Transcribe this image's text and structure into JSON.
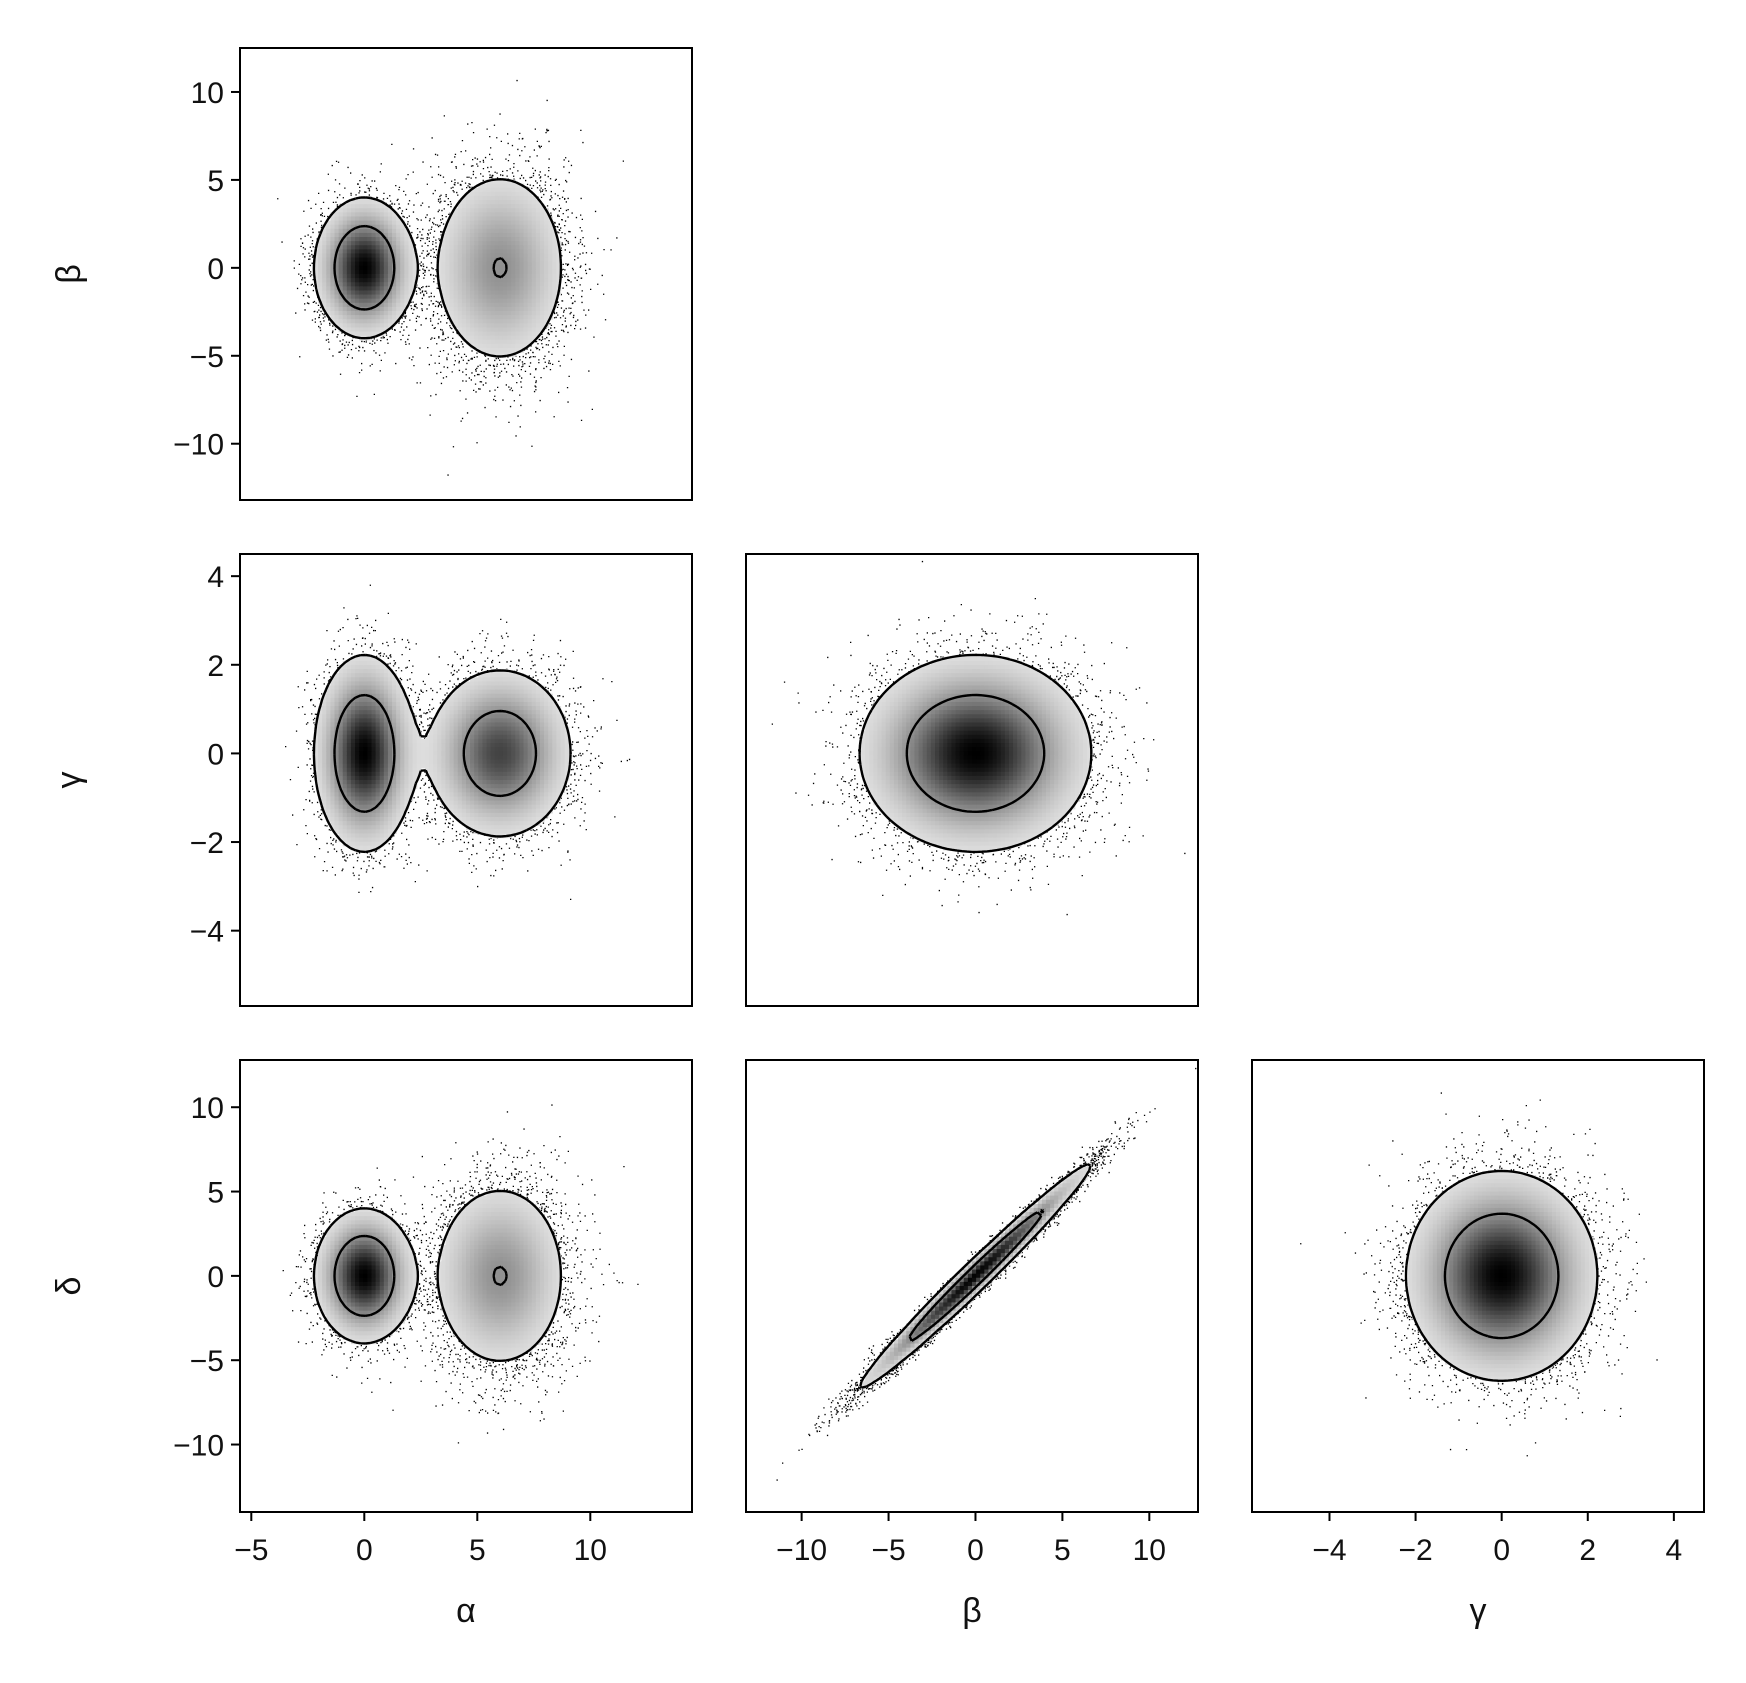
{
  "chart_data": [
    {
      "type": "scatter",
      "panel": "alpha-beta",
      "xlabel": "",
      "ylabel": "β",
      "xlim": [
        -5.5,
        14.5
      ],
      "ylim": [
        -13.2,
        12.5
      ],
      "xticks": [],
      "yticks": [
        {
          "v": -10,
          "t": "−10"
        },
        {
          "v": -5,
          "t": "−5"
        },
        {
          "v": 0,
          "t": "0"
        },
        {
          "v": 5,
          "t": "5"
        },
        {
          "v": 10,
          "t": "10"
        }
      ],
      "components": [
        {
          "weight": 0.5,
          "cx": 0,
          "cy": 0,
          "sx": 1.0,
          "sy": 1.8,
          "corr": 0
        },
        {
          "weight": 0.5,
          "cx": 6,
          "cy": 0,
          "sx": 1.5,
          "sy": 2.8,
          "corr": 0
        }
      ]
    },
    {
      "type": "scatter",
      "panel": "alpha-gamma",
      "xlabel": "",
      "ylabel": "γ",
      "xlim": [
        -5.5,
        14.5
      ],
      "ylim": [
        -5.7,
        4.5
      ],
      "xticks": [],
      "yticks": [
        {
          "v": -4,
          "t": "−4"
        },
        {
          "v": -2,
          "t": "−2"
        },
        {
          "v": 0,
          "t": "0"
        },
        {
          "v": 2,
          "t": "2"
        },
        {
          "v": 4,
          "t": "4"
        }
      ],
      "components": [
        {
          "weight": 0.5,
          "cx": 0,
          "cy": 0,
          "sx": 1.0,
          "sy": 1.0,
          "corr": 0
        },
        {
          "weight": 0.5,
          "cx": 6,
          "cy": 0,
          "sx": 1.5,
          "sy": 0.9,
          "corr": 0
        }
      ]
    },
    {
      "type": "scatter",
      "panel": "beta-gamma",
      "xlabel": "",
      "ylabel": "",
      "xlim": [
        -13.2,
        12.8
      ],
      "ylim": [
        -5.7,
        4.5
      ],
      "xticks": [],
      "yticks": [],
      "components": [
        {
          "weight": 1,
          "cx": 0,
          "cy": 0,
          "sx": 3.0,
          "sy": 1.0,
          "corr": 0
        }
      ]
    },
    {
      "type": "scatter",
      "panel": "alpha-delta",
      "xlabel": "α",
      "ylabel": "δ",
      "xlim": [
        -5.5,
        14.5
      ],
      "ylim": [
        -14.0,
        12.8
      ],
      "xticks": [
        {
          "v": -5,
          "t": "−5"
        },
        {
          "v": 0,
          "t": "0"
        },
        {
          "v": 5,
          "t": "5"
        },
        {
          "v": 10,
          "t": "10"
        }
      ],
      "yticks": [
        {
          "v": -10,
          "t": "−10"
        },
        {
          "v": -5,
          "t": "−5"
        },
        {
          "v": 0,
          "t": "0"
        },
        {
          "v": 5,
          "t": "5"
        },
        {
          "v": 10,
          "t": "10"
        }
      ],
      "components": [
        {
          "weight": 0.5,
          "cx": 0,
          "cy": 0,
          "sx": 1.0,
          "sy": 1.8,
          "corr": 0
        },
        {
          "weight": 0.5,
          "cx": 6,
          "cy": 0,
          "sx": 1.5,
          "sy": 2.8,
          "corr": 0
        }
      ]
    },
    {
      "type": "scatter",
      "panel": "beta-delta",
      "xlabel": "β",
      "ylabel": "",
      "xlim": [
        -13.2,
        12.8
      ],
      "ylim": [
        -14.0,
        12.8
      ],
      "xticks": [
        {
          "v": -10,
          "t": "−10"
        },
        {
          "v": -5,
          "t": "−5"
        },
        {
          "v": 0,
          "t": "0"
        },
        {
          "v": 5,
          "t": "5"
        },
        {
          "v": 10,
          "t": "10"
        }
      ],
      "yticks": [],
      "components": [
        {
          "weight": 1,
          "cx": 0,
          "cy": 0,
          "sx": 3.0,
          "sy": 3.0,
          "corr": 0.985
        }
      ]
    },
    {
      "type": "scatter",
      "panel": "gamma-delta",
      "xlabel": "γ",
      "ylabel": "",
      "xlim": [
        -5.8,
        4.7
      ],
      "ylim": [
        -14.0,
        12.8
      ],
      "xticks": [
        {
          "v": -4,
          "t": "−4"
        },
        {
          "v": -2,
          "t": "−2"
        },
        {
          "v": 0,
          "t": "0"
        },
        {
          "v": 2,
          "t": "2"
        },
        {
          "v": 4,
          "t": "4"
        }
      ],
      "yticks": [],
      "components": [
        {
          "weight": 1,
          "cx": 0,
          "cy": 0,
          "sx": 1.0,
          "sy": 2.8,
          "corr": 0
        }
      ]
    }
  ]
}
